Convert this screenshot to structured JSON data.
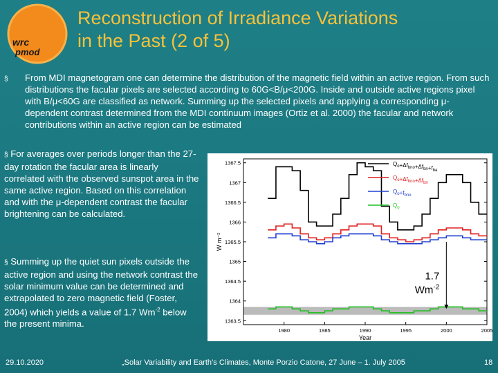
{
  "logo": {
    "line1": "pmod",
    "line2": "wrc",
    "color": "#f08a1e"
  },
  "slide": {
    "title_line1": "Reconstruction of Irradiance Variations",
    "title_line2": "in the Past (2 of 5)",
    "bullet_mark": "§",
    "bullet1_text": "From MDI magnetogram one can determine the distribution of the magnetic field within an active region. From such distributions the facular pixels are selected according to 60G<B/μ<200G. Inside and outside active regions pixel with B/μ<60G are classified as network. Summing up the selected pixels and applying a corresponding μ-dependent contrast determined from the MDI continuum images (Ortiz et al. 2000) the facular and network contributions within an active region can be estimated",
    "bullet2_text": "For averages over periods longer than the 27-day rotation the facular area is linearly correlated with the observed sunspot area in the same active region. Based on this correlation and with the μ-dependent contrast the facular brightening can be calculated.",
    "bullet3_text_a": "Summing up the quiet sun pixels outside the active region and using the network contrast the solar minimum value can be determined and extrapolated to zero magnetic field (Foster, 2004) which yields a value of 1.7 Wm",
    "bullet3_sup": "-2",
    "bullet3_text_b": " below the present minima."
  },
  "footer": {
    "date": "29.10.2020",
    "conference": "„Solar Variability and Earth’s Climates, Monte Porzio Catone, 27 June – 1. July 2005",
    "page": "18"
  },
  "chart_data": {
    "type": "line",
    "xlabel": "Year",
    "ylabel": "W m⁻²",
    "xlim": [
      1975,
      2005
    ],
    "ylim": [
      1363.4,
      1367.6
    ],
    "x_ticks": [
      1980,
      1985,
      1990,
      1995,
      2000,
      2005
    ],
    "y_ticks": [
      1363.5,
      1364,
      1364.5,
      1365,
      1365.5,
      1366,
      1366.5,
      1367,
      1367.5
    ],
    "annotation": {
      "value": "1.7",
      "unit": "Wm",
      "unit_sup": "-2",
      "from": [
        2000,
        1365.5
      ],
      "to": [
        2000,
        1363.8
      ]
    },
    "band": {
      "y0": 1363.65,
      "y1": 1363.85,
      "color": "#bbbbbb"
    },
    "x": [
      1978,
      1979,
      1980,
      1981,
      1982,
      1983,
      1984,
      1985,
      1986,
      1987,
      1988,
      1989,
      1990,
      1991,
      1992,
      1993,
      1994,
      1995,
      1996,
      1997,
      1998,
      1999,
      2000,
      2001,
      2002,
      2003,
      2004
    ],
    "series": [
      {
        "name_parts": [
          "Q",
          "o",
          "+Δf",
          "bno",
          "+Δf",
          "bn",
          "+f",
          "ba"
        ],
        "color": "#000000",
        "values": [
          1366.6,
          1367.4,
          1367.4,
          1367.3,
          1366.8,
          1366.0,
          1365.9,
          1365.9,
          1366.2,
          1366.6,
          1367.2,
          1367.5,
          1367.4,
          1367.3,
          1366.4,
          1366.0,
          1365.8,
          1365.8,
          1365.9,
          1366.2,
          1366.6,
          1367.0,
          1367.2,
          1367.2,
          1367.0,
          1366.5,
          1366.2
        ]
      },
      {
        "name_parts": [
          "Q",
          "o",
          "+Δf",
          "bno",
          "+Δf",
          "bn",
          "",
          ""
        ],
        "color": "#e02020",
        "values": [
          1365.8,
          1365.9,
          1365.95,
          1365.85,
          1365.7,
          1365.6,
          1365.55,
          1365.6,
          1365.7,
          1365.8,
          1365.9,
          1365.95,
          1365.95,
          1365.9,
          1365.7,
          1365.6,
          1365.55,
          1365.5,
          1365.55,
          1365.6,
          1365.7,
          1365.8,
          1365.85,
          1365.85,
          1365.8,
          1365.7,
          1365.65
        ]
      },
      {
        "name_parts": [
          "Q",
          "o",
          "+f",
          "bno",
          "",
          "",
          "",
          ""
        ],
        "color": "#2040d0",
        "values": [
          1365.6,
          1365.7,
          1365.7,
          1365.65,
          1365.55,
          1365.5,
          1365.45,
          1365.5,
          1365.6,
          1365.65,
          1365.7,
          1365.7,
          1365.7,
          1365.65,
          1365.55,
          1365.5,
          1365.45,
          1365.45,
          1365.45,
          1365.5,
          1365.55,
          1365.6,
          1365.65,
          1365.65,
          1365.6,
          1365.55,
          1365.55
        ]
      },
      {
        "name_parts": [
          "Q",
          "o",
          "",
          "",
          "",
          "",
          "",
          ""
        ],
        "color": "#20c020",
        "values": [
          1363.8,
          1363.85,
          1363.85,
          1363.8,
          1363.75,
          1363.7,
          1363.7,
          1363.75,
          1363.8,
          1363.8,
          1363.85,
          1363.85,
          1363.85,
          1363.8,
          1363.75,
          1363.7,
          1363.7,
          1363.7,
          1363.75,
          1363.75,
          1363.8,
          1363.85,
          1363.85,
          1363.85,
          1363.8,
          1363.8,
          1363.75
        ]
      }
    ]
  }
}
